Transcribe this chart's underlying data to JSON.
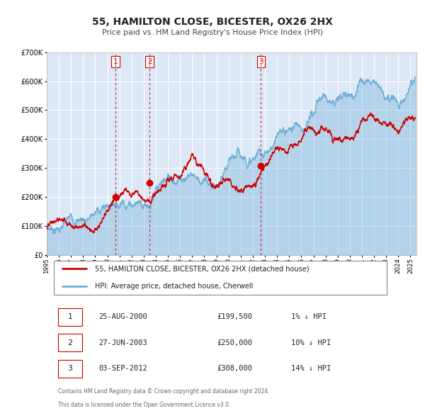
{
  "title": "55, HAMILTON CLOSE, BICESTER, OX26 2HX",
  "subtitle": "Price paid vs. HM Land Registry's House Price Index (HPI)",
  "legend_line1": "55, HAMILTON CLOSE, BICESTER, OX26 2HX (detached house)",
  "legend_line2": "HPI: Average price, detached house, Cherwell",
  "footer_line1": "Contains HM Land Registry data © Crown copyright and database right 2024.",
  "footer_line2": "This data is licensed under the Open Government Licence v3.0.",
  "transactions": [
    {
      "num": 1,
      "date": "25-AUG-2000",
      "price": "£199,500",
      "hpi": "1% ↓ HPI",
      "year": 2000.65,
      "value": 199500
    },
    {
      "num": 2,
      "date": "27-JUN-2003",
      "price": "£250,000",
      "hpi": "10% ↓ HPI",
      "year": 2003.49,
      "value": 250000
    },
    {
      "num": 3,
      "date": "03-SEP-2012",
      "price": "£308,000",
      "hpi": "14% ↓ HPI",
      "year": 2012.67,
      "value": 308000
    }
  ],
  "hpi_color": "#6baed6",
  "price_color": "#cc0000",
  "vline_color": "#cc0000",
  "bg_chart": "#dce8f5",
  "ylim": [
    0,
    700000
  ],
  "yticks": [
    0,
    100000,
    200000,
    300000,
    400000,
    500000,
    600000,
    700000
  ],
  "xlim_start": 1995.0,
  "xlim_end": 2025.5,
  "xticks": [
    1995,
    1996,
    1997,
    1998,
    1999,
    2000,
    2001,
    2002,
    2003,
    2004,
    2005,
    2006,
    2007,
    2008,
    2009,
    2010,
    2011,
    2012,
    2013,
    2014,
    2015,
    2016,
    2017,
    2018,
    2019,
    2020,
    2021,
    2022,
    2023,
    2024,
    2025
  ],
  "hpi_years": [
    1995,
    1996,
    1997,
    1998,
    1999,
    2000,
    2001,
    2002,
    2003,
    2004,
    2005,
    2006,
    2007,
    2008,
    2009,
    2010,
    2011,
    2012,
    2013,
    2014,
    2015,
    2016,
    2017,
    2018,
    2019,
    2020,
    2021,
    2022,
    2023,
    2024,
    2025.4
  ],
  "hpi_values": [
    95000,
    102000,
    112000,
    125000,
    140000,
    165000,
    200000,
    225000,
    245000,
    275000,
    292000,
    308000,
    340000,
    318000,
    288000,
    305000,
    315000,
    310000,
    330000,
    358000,
    378000,
    398000,
    428000,
    455000,
    468000,
    458000,
    525000,
    575000,
    535000,
    505000,
    615000
  ],
  "price_years": [
    1995,
    1996,
    1997,
    1998,
    1999,
    2000,
    2000.65,
    2001,
    2002,
    2003,
    2003.49,
    2004,
    2005,
    2006,
    2007,
    2008,
    2009,
    2010,
    2011,
    2012,
    2012.67,
    2013,
    2014,
    2015,
    2016,
    2017,
    2018,
    2019,
    2020,
    2021,
    2022,
    2023,
    2024,
    2025.4
  ],
  "price_values": [
    88000,
    95000,
    105000,
    118000,
    132000,
    155000,
    199500,
    215000,
    228000,
    242000,
    250000,
    268000,
    283000,
    293000,
    318000,
    290000,
    262000,
    278000,
    282000,
    292000,
    308000,
    318000,
    342000,
    358000,
    372000,
    398000,
    412000,
    388000,
    392000,
    432000,
    465000,
    450000,
    428000,
    472000
  ]
}
